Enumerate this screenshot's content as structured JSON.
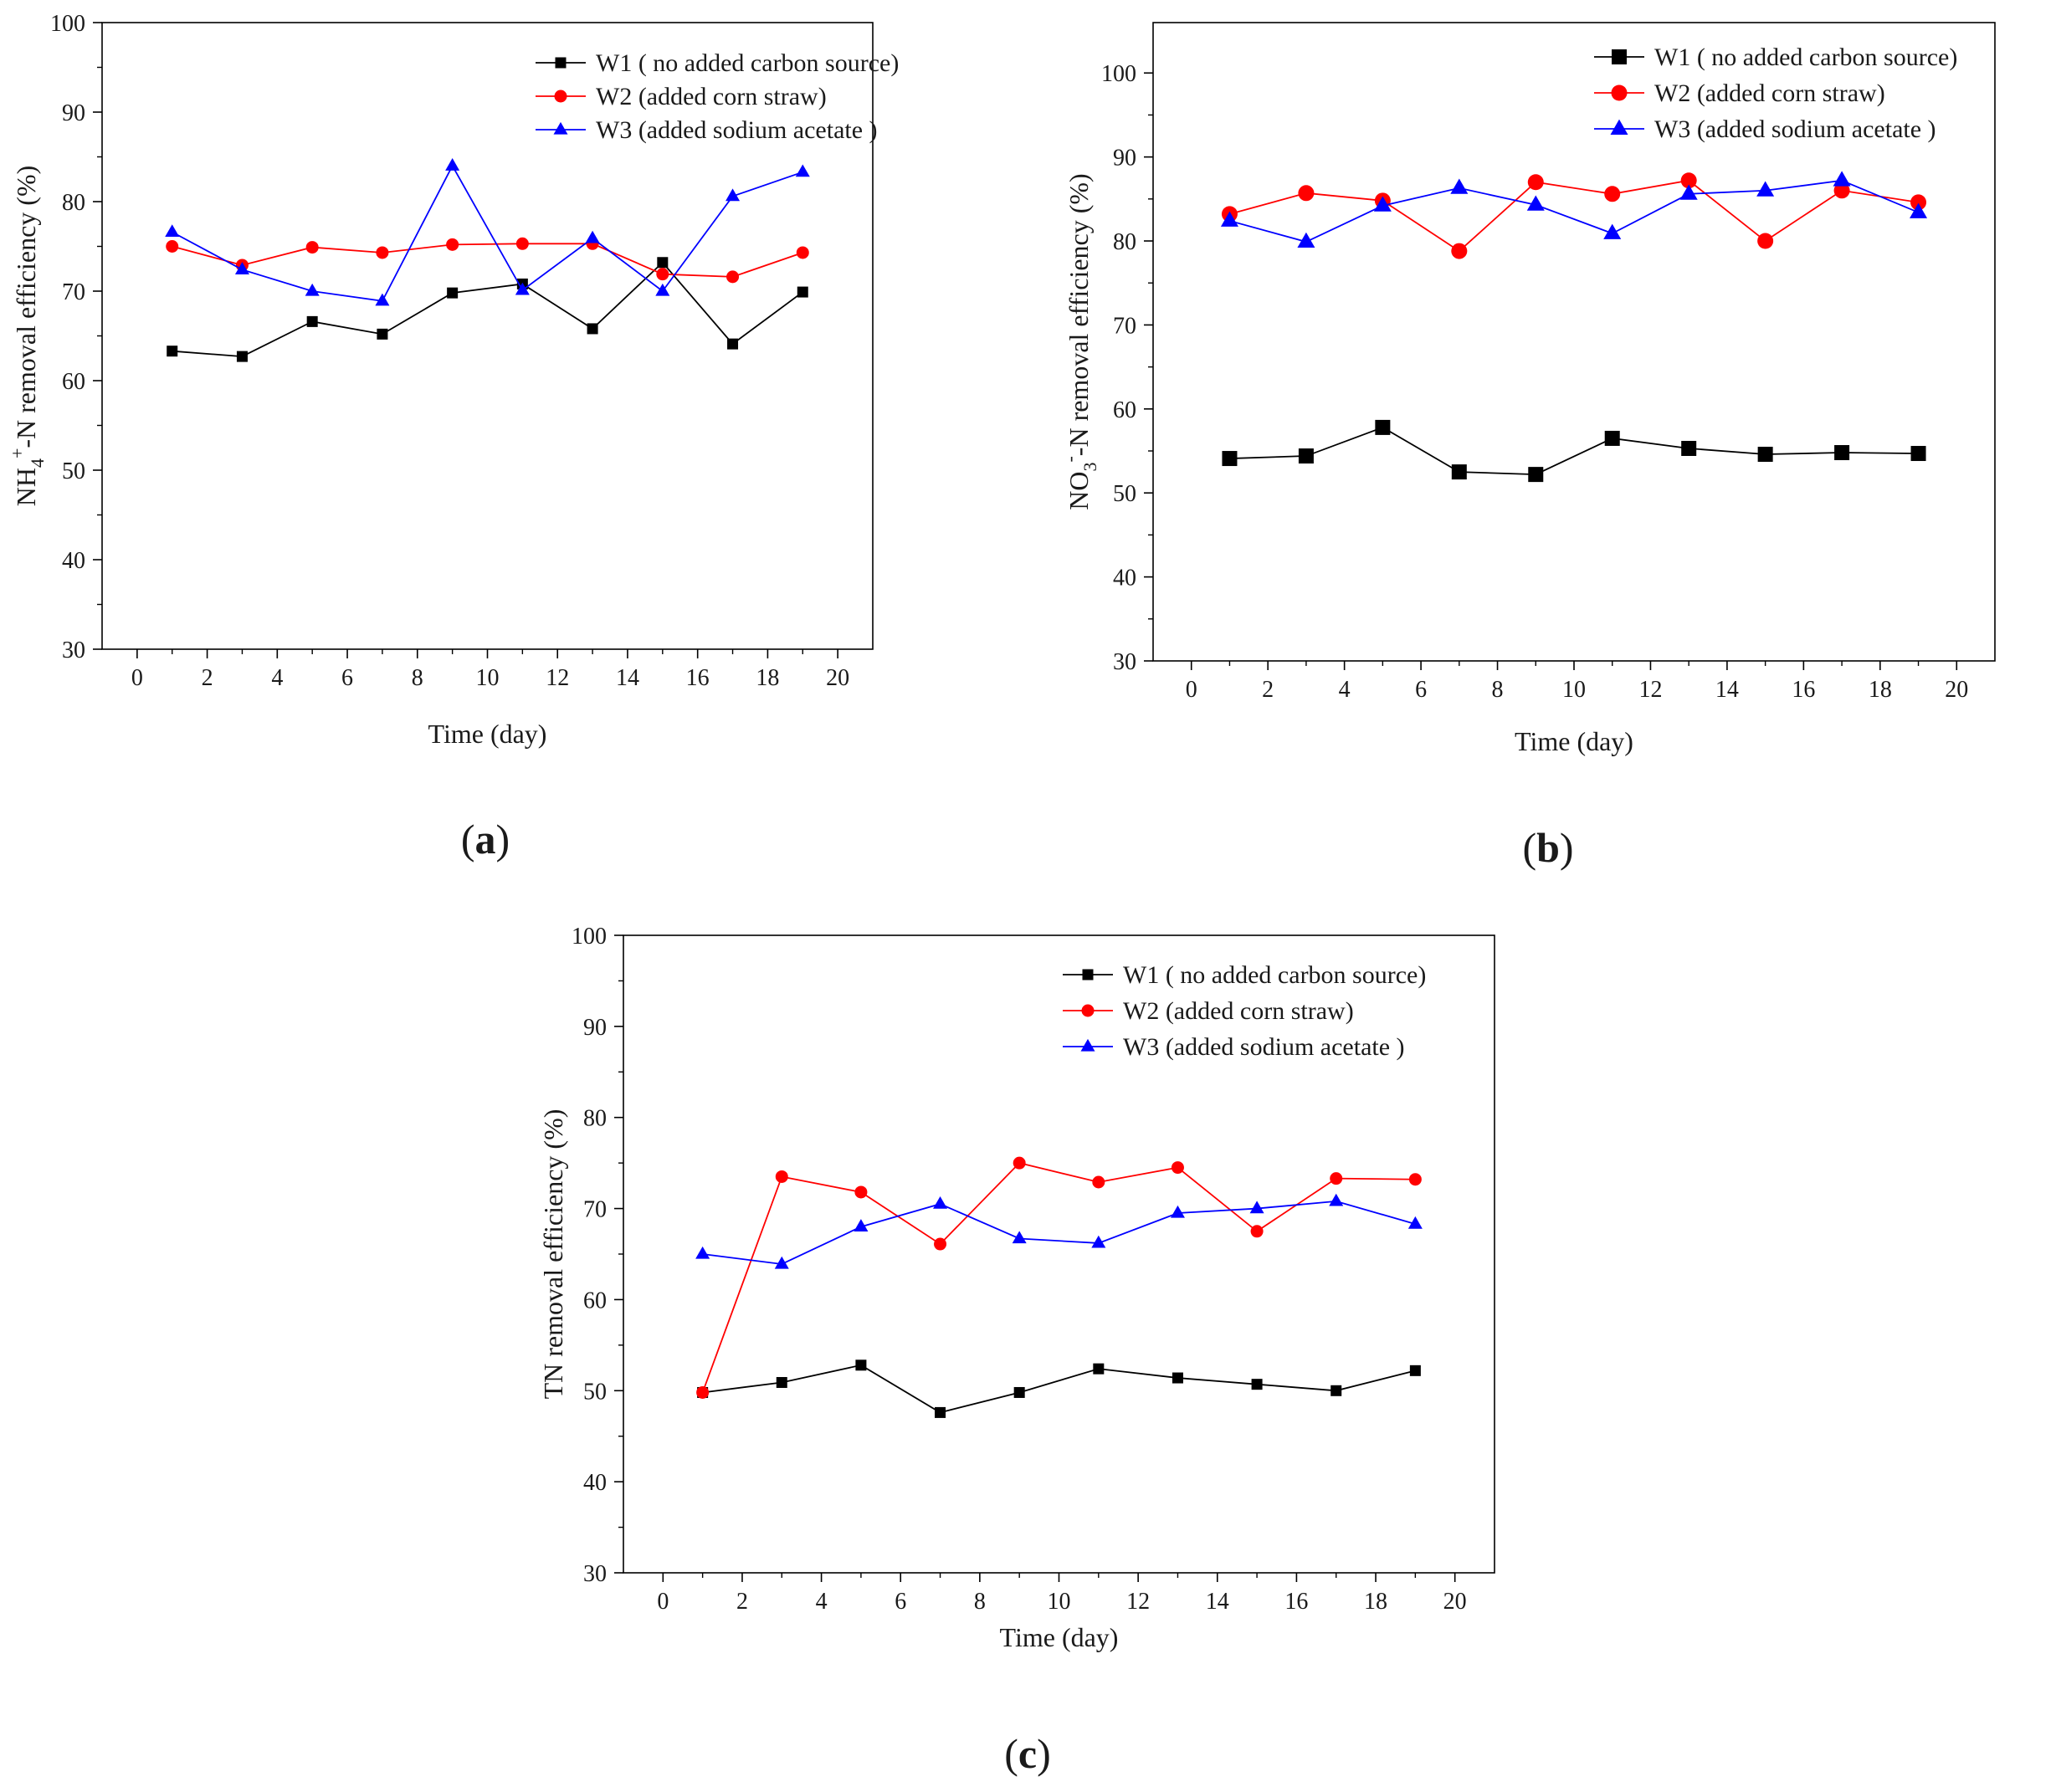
{
  "chart_data": [
    {
      "panel": "a",
      "type": "line",
      "xlabel": "Time (day)",
      "ylabel_main": "NH",
      "ylabel_sub": "4",
      "ylabel_sup": "+",
      "ylabel_rest": "-N removal efficiency (%)",
      "xlim": [
        -1,
        21
      ],
      "ylim": [
        30,
        100
      ],
      "xticks": [
        0,
        2,
        4,
        6,
        8,
        10,
        12,
        14,
        16,
        18,
        20
      ],
      "yticks": [
        30,
        40,
        50,
        60,
        70,
        80,
        90,
        100
      ],
      "x": [
        1,
        3,
        5,
        7,
        9,
        11,
        13,
        15,
        17,
        19
      ],
      "legend_position": "top-right",
      "legend_marker": "small",
      "series": [
        {
          "name": "W1 ( no added carbon source)",
          "color": "#000000",
          "marker": "square",
          "values": [
            63.3,
            62.7,
            66.6,
            65.2,
            69.8,
            70.8,
            65.8,
            73.2,
            64.1,
            69.9
          ]
        },
        {
          "name": "W2 (added corn straw)",
          "color": "#ff0000",
          "marker": "circle",
          "values": [
            75.0,
            72.9,
            74.9,
            74.3,
            75.2,
            75.3,
            75.3,
            71.9,
            71.6,
            74.3
          ]
        },
        {
          "name": "W3 (added sodium acetate )",
          "color": "#0000ff",
          "marker": "triangle",
          "values": [
            76.6,
            72.4,
            70.0,
            68.9,
            84.0,
            70.1,
            75.9,
            70.0,
            80.6,
            83.3
          ]
        }
      ],
      "panel_label": "a"
    },
    {
      "panel": "b",
      "type": "line",
      "xlabel": "Time (day)",
      "ylabel_main": "NO",
      "ylabel_sub": "3",
      "ylabel_sup": "-",
      "ylabel_rest": "-N removal efficiency (%)",
      "xlim": [
        -1,
        21
      ],
      "ylim": [
        30,
        106
      ],
      "xticks": [
        0,
        2,
        4,
        6,
        8,
        10,
        12,
        14,
        16,
        18,
        20
      ],
      "yticks": [
        30,
        40,
        50,
        60,
        70,
        80,
        90,
        100
      ],
      "x": [
        1,
        3,
        5,
        7,
        9,
        11,
        13,
        15,
        17,
        19
      ],
      "legend_position": "top-right",
      "legend_marker": "large",
      "series": [
        {
          "name": "W1 ( no added carbon source)",
          "color": "#000000",
          "marker": "square",
          "values": [
            54.1,
            54.4,
            57.8,
            52.5,
            52.2,
            56.5,
            55.3,
            54.6,
            54.8,
            54.7
          ]
        },
        {
          "name": "W2 (added corn straw)",
          "color": "#ff0000",
          "marker": "circle",
          "values": [
            83.2,
            85.7,
            84.8,
            78.8,
            87.0,
            85.6,
            87.2,
            80.0,
            86.0,
            84.6
          ]
        },
        {
          "name": "W3 (added sodium acetate )",
          "color": "#0000ff",
          "marker": "triangle",
          "values": [
            82.4,
            79.9,
            84.2,
            86.3,
            84.3,
            80.9,
            85.6,
            86.0,
            87.2,
            83.4
          ]
        }
      ],
      "panel_label": "b"
    },
    {
      "panel": "c",
      "type": "line",
      "xlabel": "Time (day)",
      "ylabel_main": "TN removal efficiency (%)",
      "ylabel_sub": "",
      "ylabel_sup": "",
      "ylabel_rest": "",
      "xlim": [
        -1,
        21
      ],
      "ylim": [
        30,
        100
      ],
      "xticks": [
        0,
        2,
        4,
        6,
        8,
        10,
        12,
        14,
        16,
        18,
        20
      ],
      "yticks": [
        30,
        40,
        50,
        60,
        70,
        80,
        90,
        100
      ],
      "x": [
        1,
        3,
        5,
        7,
        9,
        11,
        13,
        15,
        17,
        19
      ],
      "legend_position": "top-right",
      "legend_marker": "small",
      "series": [
        {
          "name": "W1 ( no added carbon source)",
          "color": "#000000",
          "marker": "square",
          "values": [
            49.8,
            50.9,
            52.8,
            47.6,
            49.8,
            52.4,
            51.4,
            50.7,
            50.0,
            52.2
          ]
        },
        {
          "name": "W2 (added corn straw)",
          "color": "#ff0000",
          "marker": "circle",
          "values": [
            49.8,
            73.5,
            71.8,
            66.1,
            75.0,
            72.9,
            74.5,
            67.5,
            73.3,
            73.2
          ]
        },
        {
          "name": "W3 (added sodium acetate )",
          "color": "#0000ff",
          "marker": "triangle",
          "values": [
            65.0,
            63.9,
            68.0,
            70.5,
            66.7,
            66.2,
            69.5,
            70.0,
            70.8,
            68.3
          ]
        }
      ],
      "panel_label": "c"
    }
  ]
}
